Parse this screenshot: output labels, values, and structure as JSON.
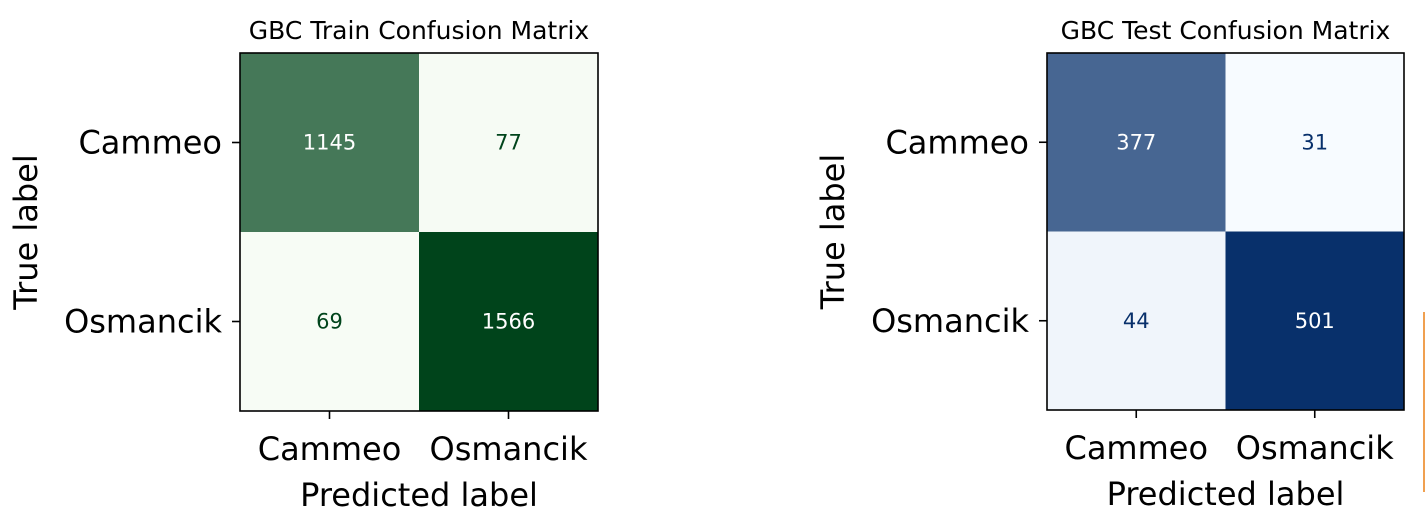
{
  "chart_data": [
    {
      "type": "heatmap",
      "title": "GBC Train Confusion Matrix",
      "xlabel": "Predicted label",
      "ylabel": "True label",
      "x_categories": [
        "Cammeo",
        "Osmancik"
      ],
      "y_categories": [
        "Cammeo",
        "Osmancik"
      ],
      "values": [
        [
          1145,
          77
        ],
        [
          69,
          1566
        ]
      ],
      "colormap": "Greens",
      "colors": {
        "low": "#f7fcf5",
        "high": "#00441b"
      },
      "grid": false,
      "legend": "none"
    },
    {
      "type": "heatmap",
      "title": "GBC Test Confusion Matrix",
      "xlabel": "Predicted label",
      "ylabel": "True label",
      "x_categories": [
        "Cammeo",
        "Osmancik"
      ],
      "y_categories": [
        "Cammeo",
        "Osmancik"
      ],
      "values": [
        [
          377,
          31
        ],
        [
          44,
          501
        ]
      ],
      "colormap": "Blues",
      "colors": {
        "low": "#f7fbff",
        "high": "#08306b"
      },
      "grid": false,
      "legend": "none"
    }
  ]
}
